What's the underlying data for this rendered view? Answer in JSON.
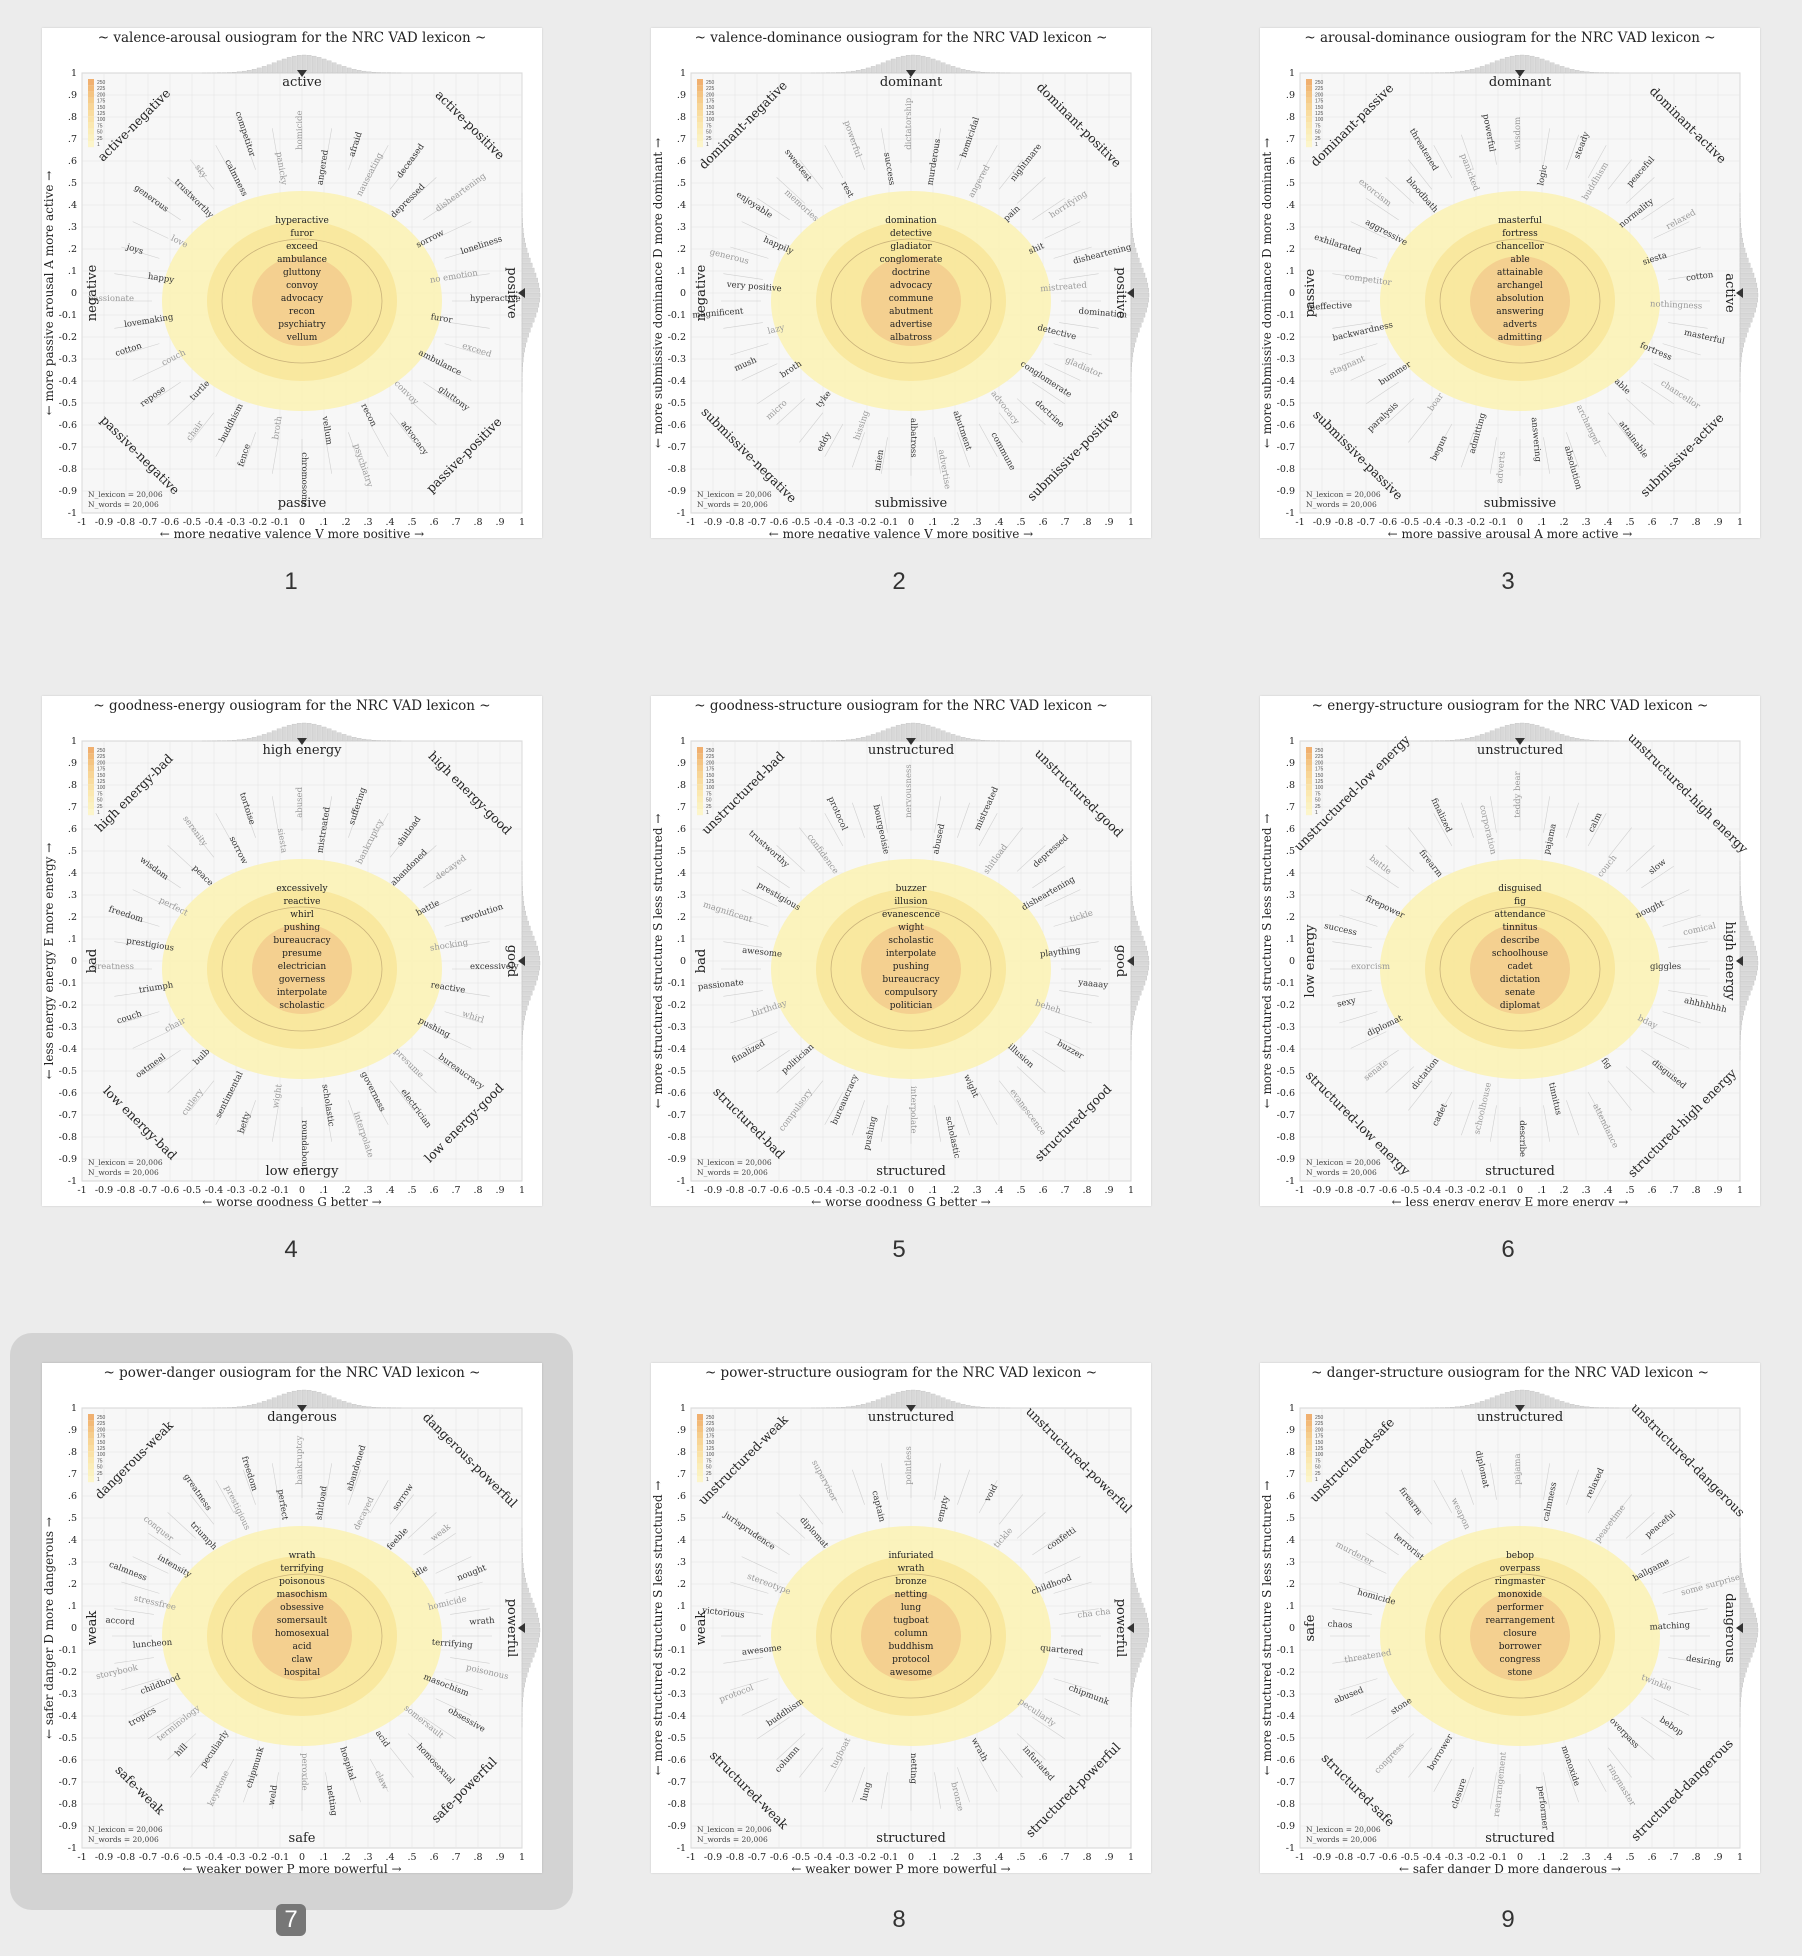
{
  "grid": {
    "selected_index": 6,
    "items": [
      {
        "number": "1",
        "title": "~ valence-arousal ousiogram for the NRC VAD lexicon ~",
        "axes": {
          "x_var": "valence",
          "x_sym": "V",
          "y_var": "arousal",
          "y_sym": "A",
          "x_less": "← more negative",
          "x_more": "more positive →",
          "y_less": "← more passive",
          "y_more": "more active →"
        },
        "poles": {
          "top": "active",
          "bottom": "passive",
          "left": "negative",
          "right": "positive"
        },
        "corners": {
          "tl": "active-negative",
          "tr": "active-positive",
          "bl": "passive-negative",
          "br": "passive-positive"
        },
        "words": [
          "homicide",
          "angered",
          "afraid",
          "nauseating",
          "deceased",
          "depressed",
          "disheartening",
          "sorrow",
          "loneliness",
          "no emotion",
          "hyperactive",
          "furor",
          "exceed",
          "ambulance",
          "gluttony",
          "convoy",
          "advocacy",
          "recon",
          "psychiatry",
          "vellum",
          "chromosome",
          "broth",
          "fence",
          "buddhism",
          "chair",
          "turtle",
          "repose",
          "couch",
          "cotton",
          "lovemaking",
          "passionate",
          "happy",
          "joys",
          "love",
          "generous",
          "trustworthy",
          "sky",
          "calmness",
          "competitor",
          "panicky"
        ],
        "n_lexicon": "N_lexicon = 20,006",
        "n_words": "N_words = 20,006"
      },
      {
        "number": "2",
        "title": "~ valence-dominance ousiogram for the NRC VAD lexicon ~",
        "axes": {
          "x_var": "valence",
          "x_sym": "V",
          "y_var": "dominance",
          "y_sym": "D",
          "x_less": "← more negative",
          "x_more": "more positive →",
          "y_less": "← more submissive",
          "y_more": "more dominant →"
        },
        "poles": {
          "top": "dominant",
          "bottom": "submissive",
          "left": "negative",
          "right": "positive"
        },
        "corners": {
          "tl": "dominant-negative",
          "tr": "dominant-positive",
          "bl": "submissive-negative",
          "br": "submissive-positive"
        },
        "words": [
          "dictatorship",
          "murderous",
          "homicidal",
          "angered",
          "nightmare",
          "pain",
          "horrifying",
          "shit",
          "disheartening",
          "mistreated",
          "domination",
          "detective",
          "gladiator",
          "conglomerate",
          "doctrine",
          "advocacy",
          "commune",
          "abutment",
          "advertise",
          "albatross",
          "mien",
          "hissing",
          "eddy",
          "tyke",
          "micro",
          "broth",
          "mush",
          "lazy",
          "magnificent",
          "very positive",
          "generous",
          "happily",
          "enjoyable",
          "memories",
          "sweetest",
          "rest",
          "powerful",
          "success"
        ],
        "n_lexicon": "N_lexicon = 20,006",
        "n_words": "N_words = 20,006"
      },
      {
        "number": "3",
        "title": "~ arousal-dominance ousiogram for the NRC VAD lexicon ~",
        "axes": {
          "x_var": "arousal",
          "x_sym": "A",
          "y_var": "dominance",
          "y_sym": "D",
          "x_less": "← more passive",
          "x_more": "more active →",
          "y_less": "← more submissive",
          "y_more": "more dominant →"
        },
        "poles": {
          "top": "dominant",
          "bottom": "submissive",
          "left": "passive",
          "right": "active"
        },
        "corners": {
          "tl": "dominant-passive",
          "tr": "dominant-active",
          "bl": "submissive-passive",
          "br": "submissive-active"
        },
        "words": [
          "wisdom",
          "logic",
          "steady",
          "buddhism",
          "peaceful",
          "normality",
          "relaxed",
          "siesta",
          "cotton",
          "nothingness",
          "masterful",
          "fortress",
          "chancellor",
          "able",
          "attainable",
          "archangel",
          "absolution",
          "answering",
          "adverts",
          "admitting",
          "begun",
          "boar",
          "paralysis",
          "bummer",
          "stagnant",
          "backwardness",
          "ineffective",
          "competitor",
          "exhilarated",
          "aggressive",
          "exorcism",
          "bloodbath",
          "threatened",
          "panicked",
          "powerful"
        ],
        "n_lexicon": "N_lexicon = 20,006",
        "n_words": "N_words = 20,006"
      },
      {
        "number": "4",
        "title": "~ goodness-energy ousiogram for the NRC VAD lexicon ~",
        "axes": {
          "x_var": "goodness",
          "x_sym": "G",
          "y_var": "energy",
          "y_sym": "E",
          "x_less": "← worse",
          "x_more": "better →",
          "y_less": "← less energy",
          "y_more": "more energy →"
        },
        "poles": {
          "top": "high energy",
          "bottom": "low energy",
          "left": "bad",
          "right": "good"
        },
        "corners": {
          "tl": "high energy-bad",
          "tr": "high energy-good",
          "bl": "low energy-bad",
          "br": "low energy-good"
        },
        "words": [
          "abused",
          "mistreated",
          "suffering",
          "bankruptcy",
          "shitload",
          "abandoned",
          "decayed",
          "battle",
          "revolution",
          "shocking",
          "excessively",
          "reactive",
          "whirl",
          "pushing",
          "bureaucracy",
          "presume",
          "electrician",
          "governess",
          "interpolate",
          "scholastic",
          "roundabout",
          "wight",
          "betty",
          "sentimental",
          "cutlery",
          "bulb",
          "oatmeal",
          "chair",
          "couch",
          "triumph",
          "greatness",
          "prestigious",
          "freedom",
          "perfect",
          "wisdom",
          "peace",
          "serenity",
          "sorrow",
          "tortoise",
          "siesta"
        ],
        "n_lexicon": "N_lexicon = 20,006",
        "n_words": "N_words = 20,006"
      },
      {
        "number": "5",
        "title": "~ goodness-structure ousiogram for the NRC VAD lexicon ~",
        "axes": {
          "x_var": "goodness",
          "x_sym": "G",
          "y_var": "structure",
          "y_sym": "S",
          "x_less": "← worse",
          "x_more": "better →",
          "y_less": "← more structured",
          "y_more": "less structured →"
        },
        "poles": {
          "top": "unstructured",
          "bottom": "structured",
          "left": "bad",
          "right": "good"
        },
        "corners": {
          "tl": "unstructured-bad",
          "tr": "unstructured-good",
          "bl": "structured-bad",
          "br": "structured-good"
        },
        "words": [
          "nervousness",
          "abused",
          "mistreated",
          "shitload",
          "depressed",
          "disheartening",
          "tickle",
          "plaything",
          "yaaaay",
          "beheh",
          "buzzer",
          "illusion",
          "evanescence",
          "wight",
          "scholastic",
          "interpolate",
          "pushing",
          "bureaucracy",
          "compulsory",
          "politician",
          "finalized",
          "birthday",
          "passionate",
          "awesome",
          "magnificent",
          "prestigious",
          "trustworthy",
          "confidence",
          "protocol",
          "bourgeoisie"
        ],
        "n_lexicon": "N_lexicon = 20,006",
        "n_words": "N_words = 20,006"
      },
      {
        "number": "6",
        "title": "~ energy-structure ousiogram for the NRC VAD lexicon ~",
        "axes": {
          "x_var": "energy",
          "x_sym": "E",
          "y_var": "structure",
          "y_sym": "S",
          "x_less": "← less energy",
          "x_more": "more energy →",
          "y_less": "← more structured",
          "y_more": "less structured →"
        },
        "poles": {
          "top": "unstructured",
          "bottom": "structured",
          "left": "low energy",
          "right": "high energy"
        },
        "corners": {
          "tl": "unstructured-low energy",
          "tr": "unstructured-high energy",
          "bl": "structured-low energy",
          "br": "structured-high energy"
        },
        "words": [
          "teddy bear",
          "pajama",
          "calm",
          "couch",
          "slow",
          "nought",
          "comical",
          "giggles",
          "ahhhhhhh",
          "bday",
          "disguised",
          "fig",
          "attendance",
          "tinnitus",
          "describe",
          "schoolhouse",
          "cadet",
          "dictation",
          "senate",
          "diplomat",
          "sexy",
          "exorcism",
          "success",
          "firepower",
          "battle",
          "firearm",
          "finalized",
          "corporation"
        ],
        "n_lexicon": "N_lexicon = 20,006",
        "n_words": "N_words = 20,006"
      },
      {
        "number": "7",
        "title": "~ power-danger ousiogram for the NRC VAD lexicon ~",
        "axes": {
          "x_var": "power",
          "x_sym": "P",
          "y_var": "danger",
          "y_sym": "D",
          "x_less": "← weaker",
          "x_more": "more powerful →",
          "y_less": "← safer",
          "y_more": "more dangerous →"
        },
        "poles": {
          "top": "dangerous",
          "bottom": "safe",
          "left": "weak",
          "right": "powerful"
        },
        "corners": {
          "tl": "dangerous-weak",
          "tr": "dangerous-powerful",
          "bl": "safe-weak",
          "br": "safe-powerful"
        },
        "words": [
          "bankruptcy",
          "shitload",
          "abandoned",
          "decayed",
          "sorrow",
          "feeble",
          "weak",
          "idle",
          "nought",
          "homicide",
          "wrath",
          "terrifying",
          "poisonous",
          "masochism",
          "obsessive",
          "somersault",
          "homosexual",
          "acid",
          "claw",
          "hospital",
          "netting",
          "peroxide",
          "weld",
          "chipmunk",
          "keystone",
          "peculiarly",
          "hill",
          "terminology",
          "tropics",
          "childhood",
          "storybook",
          "luncheon",
          "accord",
          "stressfree",
          "calmness",
          "intensity",
          "conquer",
          "triumph",
          "greatness",
          "prestigious",
          "freedom",
          "perfect"
        ],
        "n_lexicon": "N_lexicon = 20,006",
        "n_words": "N_words = 20,006"
      },
      {
        "number": "8",
        "title": "~ power-structure ousiogram for the NRC VAD lexicon ~",
        "axes": {
          "x_var": "power",
          "x_sym": "P",
          "y_var": "structure",
          "y_sym": "S",
          "x_less": "← weaker",
          "x_more": "more powerful →",
          "y_less": "← more structured",
          "y_more": "less structured →"
        },
        "poles": {
          "top": "unstructured",
          "bottom": "structured",
          "left": "weak",
          "right": "powerful"
        },
        "corners": {
          "tl": "unstructured-weak",
          "tr": "unstructured-powerful",
          "bl": "structured-weak",
          "br": "structured-powerful"
        },
        "words": [
          "pointless",
          "empty",
          "void",
          "tickle",
          "confetti",
          "childhood",
          "cha cha",
          "quartered",
          "chipmunk",
          "peculiarly",
          "infuriated",
          "wrath",
          "bronze",
          "netting",
          "lung",
          "tugboat",
          "column",
          "buddhism",
          "protocol",
          "awesome",
          "victorious",
          "stereotype",
          "jurisprudence",
          "diplomat",
          "supervisor",
          "captain"
        ],
        "n_lexicon": "N_lexicon = 20,006",
        "n_words": "N_words = 20,006"
      },
      {
        "number": "9",
        "title": "~ danger-structure ousiogram for the NRC VAD lexicon ~",
        "axes": {
          "x_var": "danger",
          "x_sym": "D",
          "y_var": "structure",
          "y_sym": "S",
          "x_less": "← safer",
          "x_more": "more dangerous →",
          "y_less": "← more structured",
          "y_more": "less structured →"
        },
        "poles": {
          "top": "unstructured",
          "bottom": "structured",
          "left": "safe",
          "right": "dangerous"
        },
        "corners": {
          "tl": "unstructured-safe",
          "tr": "unstructured-dangerous",
          "bl": "structured-safe",
          "br": "structured-dangerous"
        },
        "words": [
          "pajama",
          "calmness",
          "relaxed",
          "peacetime",
          "peaceful",
          "ballgame",
          "some surprise",
          "matching",
          "desiring",
          "twinkle",
          "bebop",
          "overpass",
          "ringmaster",
          "monoxide",
          "performer",
          "rearrangement",
          "closure",
          "borrower",
          "congress",
          "stone",
          "abused",
          "threatened",
          "chaos",
          "homicide",
          "murderer",
          "terrorist",
          "firearm",
          "weapon",
          "diplomat"
        ],
        "n_lexicon": "N_lexicon = 20,006",
        "n_words": "N_words = 20,006"
      }
    ]
  }
}
